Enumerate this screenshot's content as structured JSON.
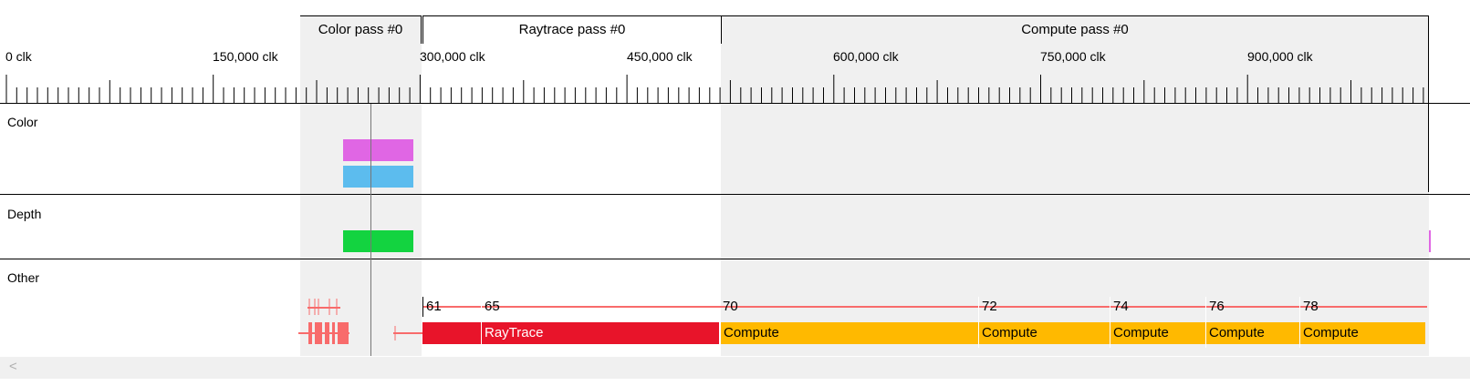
{
  "passes": [
    {
      "name": "Color pass #0"
    },
    {
      "name": "Raytrace pass #0"
    },
    {
      "name": "Compute pass #0"
    }
  ],
  "ruler": {
    "labels": [
      "0 clk",
      "150,000 clk",
      "300,000 clk",
      "450,000 clk",
      "600,000 clk",
      "750,000 clk",
      "900,000 clk"
    ]
  },
  "lanes": {
    "color": "Color",
    "depth": "Depth",
    "other": "Other"
  },
  "events": {
    "raytrace": {
      "label": "RayTrace",
      "numbers": [
        "61",
        "65"
      ]
    },
    "compute": {
      "numbers": [
        "70",
        "72",
        "74",
        "76",
        "78"
      ],
      "labels": [
        "Compute",
        "Compute",
        "Compute",
        "Compute",
        "Compute"
      ]
    }
  },
  "colors": {
    "pass_shade": "#f0f0f0",
    "color_target_a": "#e066e4",
    "color_target_b": "#5cbcee",
    "depth_target": "#13d340",
    "raytrace_bar": "#e8142a",
    "compute_bar": "#ffb900",
    "event_line": "#f86b6b"
  },
  "scrollbar": {
    "left_arrow": "<"
  }
}
